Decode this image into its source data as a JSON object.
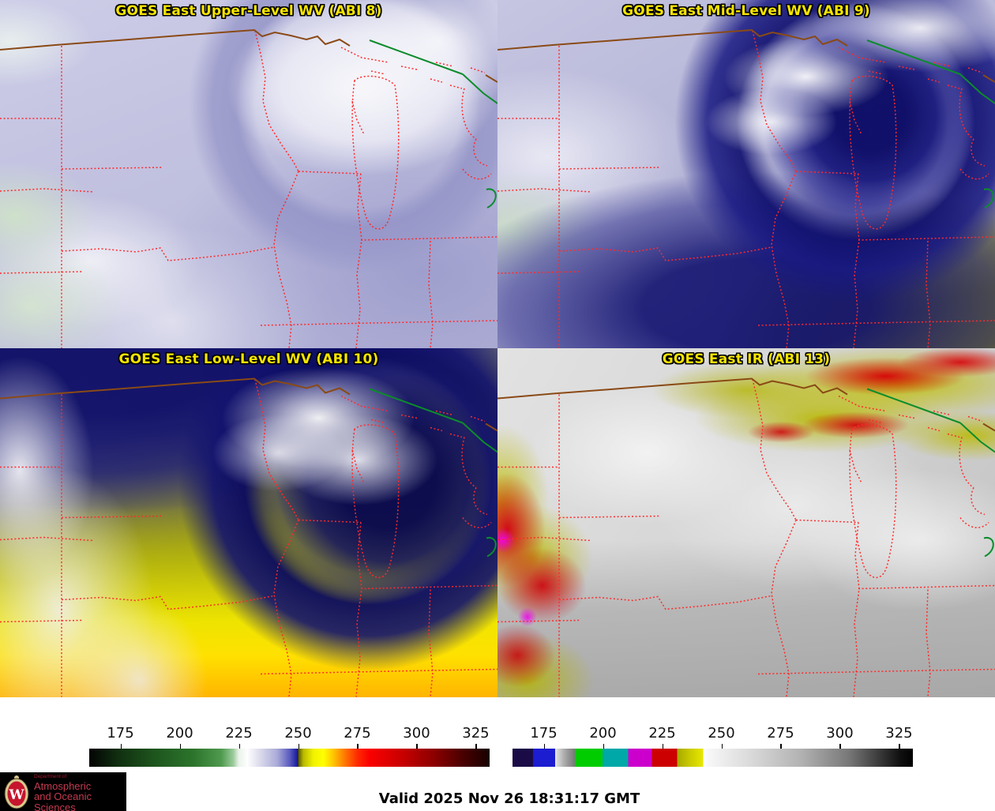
{
  "panels": [
    {
      "title": "GOES East Upper-Level WV (ABI 8)"
    },
    {
      "title": "GOES East Mid-Level WV (ABI 9)"
    },
    {
      "title": "GOES East Low-Level WV (ABI 10)"
    },
    {
      "title": "GOES East IR (ABI 13)"
    }
  ],
  "title_color": "#f5e400",
  "map": {
    "state_border_color": "#ff2a2a",
    "international_border_color": "#8a4a16",
    "water_boundary_color": "#0c8c2c"
  },
  "colorbars": [
    {
      "name": "wv-colorbar",
      "ticks": [
        "175",
        "200",
        "225",
        "250",
        "275",
        "300",
        "325"
      ],
      "stops": [
        {
          "p": 0,
          "c": "#030303"
        },
        {
          "p": 7,
          "c": "#102e10"
        },
        {
          "p": 16,
          "c": "#1d541d"
        },
        {
          "p": 26,
          "c": "#2c742c"
        },
        {
          "p": 33,
          "c": "#4f9a4f"
        },
        {
          "p": 36,
          "c": "#9ccb9c"
        },
        {
          "p": 37.3,
          "c": "#e9f2e9"
        },
        {
          "p": 39.5,
          "c": "#fefefe"
        },
        {
          "p": 43,
          "c": "#d7d7ea"
        },
        {
          "p": 47,
          "c": "#a9a9d8"
        },
        {
          "p": 50,
          "c": "#5c5cc0"
        },
        {
          "p": 52,
          "c": "#1a1a9a"
        },
        {
          "p": 52.1,
          "c": "#00007d"
        },
        {
          "p": 52.2,
          "c": "#565600"
        },
        {
          "p": 53.5,
          "c": "#b9b900"
        },
        {
          "p": 56,
          "c": "#f2f200"
        },
        {
          "p": 58.5,
          "c": "#ffff00"
        },
        {
          "p": 61,
          "c": "#ffc400"
        },
        {
          "p": 64,
          "c": "#ff7300"
        },
        {
          "p": 67,
          "c": "#ff2a00"
        },
        {
          "p": 70,
          "c": "#fb0000"
        },
        {
          "p": 78,
          "c": "#c90000"
        },
        {
          "p": 86,
          "c": "#8d0000"
        },
        {
          "p": 93,
          "c": "#4c0000"
        },
        {
          "p": 100,
          "c": "#160000"
        }
      ]
    },
    {
      "name": "ir-colorbar",
      "ticks": [
        "175",
        "200",
        "225",
        "250",
        "275",
        "300",
        "325"
      ],
      "stops": [
        {
          "p": 0,
          "c": "#1a0a46"
        },
        {
          "p": 5.1,
          "c": "#1a0a46"
        },
        {
          "p": 5.1,
          "c": "#1c1cd0"
        },
        {
          "p": 10.7,
          "c": "#1c1cd0"
        },
        {
          "p": 10.7,
          "c": "#e6e6e6"
        },
        {
          "p": 13,
          "c": "#aaaaaa"
        },
        {
          "p": 15.6,
          "c": "#777777"
        },
        {
          "p": 15.6,
          "c": "#00cc00"
        },
        {
          "p": 22.5,
          "c": "#00cc00"
        },
        {
          "p": 22.5,
          "c": "#00a8a8"
        },
        {
          "p": 28.9,
          "c": "#00a8a8"
        },
        {
          "p": 28.9,
          "c": "#cc00cc"
        },
        {
          "p": 34.8,
          "c": "#cc00cc"
        },
        {
          "p": 34.8,
          "c": "#cc0000"
        },
        {
          "p": 41.1,
          "c": "#cc0000"
        },
        {
          "p": 41.1,
          "c": "#a8a800"
        },
        {
          "p": 44.5,
          "c": "#cccc00"
        },
        {
          "p": 47.6,
          "c": "#e8e800"
        },
        {
          "p": 47.6,
          "c": "#fbfbfb"
        },
        {
          "p": 60,
          "c": "#d8d8d8"
        },
        {
          "p": 72,
          "c": "#b2b2b2"
        },
        {
          "p": 84,
          "c": "#787878"
        },
        {
          "p": 96.6,
          "c": "#111111"
        },
        {
          "p": 100,
          "c": "#000000"
        }
      ]
    }
  ],
  "footer": {
    "valid": "Valid 2025 Nov 26 18:31:17 GMT",
    "logo": {
      "department": "Department of",
      "line1": "Atmospheric",
      "line2": "and Oceanic Sciences",
      "crest_letter": "W"
    }
  }
}
